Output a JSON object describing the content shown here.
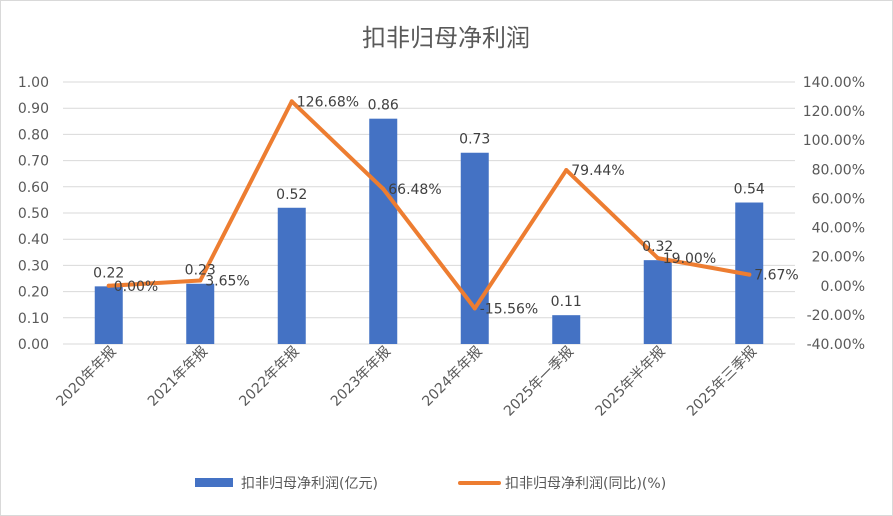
{
  "chart_data": {
    "type": "bar",
    "title": "扣非归母净利润",
    "categories": [
      "2020年年报",
      "2021年年报",
      "2022年年报",
      "2023年年报",
      "2024年年报",
      "2025年一季报",
      "2025年半年报",
      "2025年三季报"
    ],
    "series": [
      {
        "name": "扣非归母净利润(亿元)",
        "type": "bar",
        "axis": "left",
        "color": "#4472C4",
        "values": [
          0.22,
          0.23,
          0.52,
          0.86,
          0.73,
          0.11,
          0.32,
          0.54
        ],
        "labels": [
          "0.22",
          "0.23",
          "0.52",
          "0.86",
          "0.73",
          "0.11",
          "0.32",
          "0.54"
        ]
      },
      {
        "name": "扣非归母净利润(同比)(%)",
        "type": "line",
        "axis": "right",
        "color": "#ED7D31",
        "values": [
          0.0,
          3.65,
          126.68,
          66.48,
          -15.56,
          79.44,
          19.0,
          7.67
        ],
        "labels": [
          "0.00%",
          "3.65%",
          "126.68%",
          "66.48%",
          "-15.56%",
          "79.44%",
          "19.00%",
          "7.67%"
        ]
      }
    ],
    "y_left": {
      "min": 0,
      "max": 1.0,
      "ticks": [
        "0.00",
        "0.10",
        "0.20",
        "0.30",
        "0.40",
        "0.50",
        "0.60",
        "0.70",
        "0.80",
        "0.90",
        "1.00"
      ]
    },
    "y_right": {
      "min": -40,
      "max": 140,
      "ticks": [
        "-40.00%",
        "-20.00%",
        "0.00%",
        "20.00%",
        "40.00%",
        "60.00%",
        "80.00%",
        "100.00%",
        "120.00%",
        "140.00%"
      ]
    },
    "grid": true,
    "legend": "bottom"
  }
}
